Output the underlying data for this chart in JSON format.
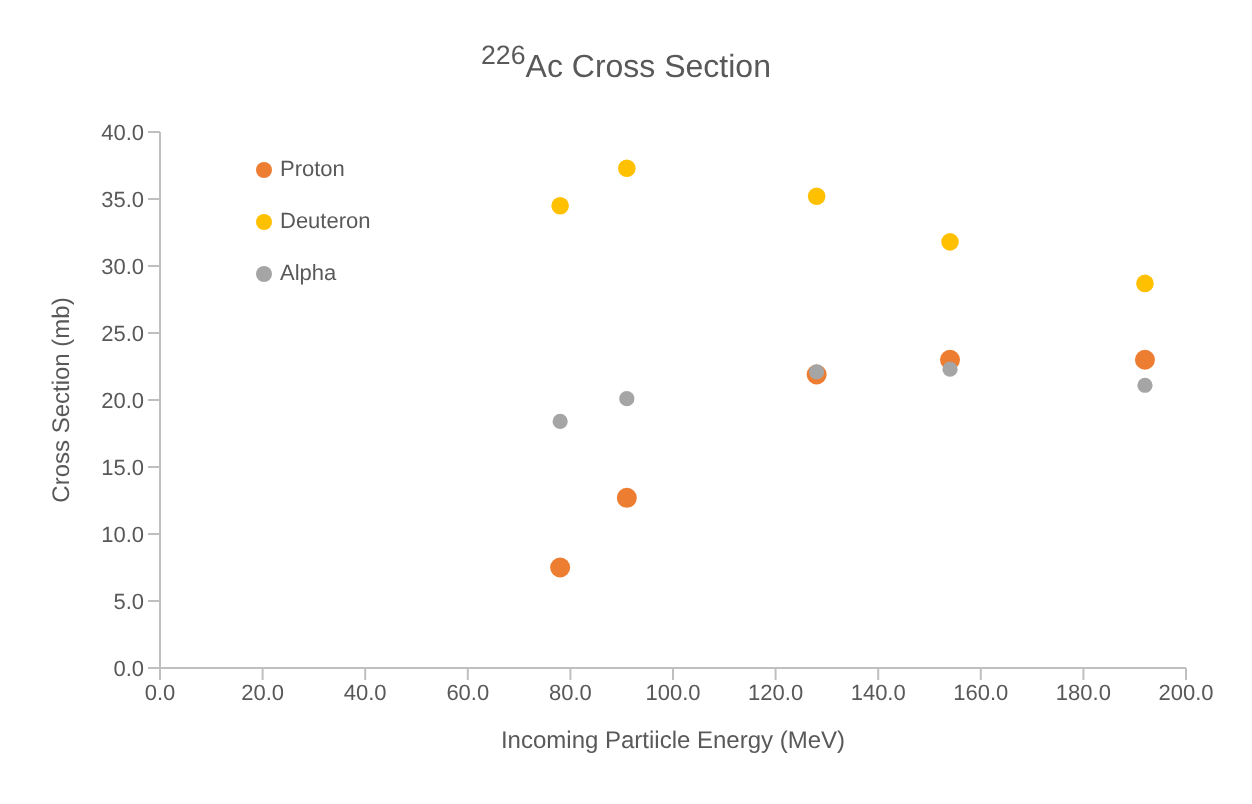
{
  "chart_data": {
    "type": "scatter",
    "title": "$^{226}$Ac Cross Section",
    "xlabel": "Incoming Partiicle Energy (MeV)",
    "ylabel": "Cross Section (mb)",
    "x": [
      78,
      91,
      128,
      154,
      192
    ],
    "series": [
      {
        "name": "Proton",
        "color": "#ed7d31",
        "values": [
          7.5,
          12.7,
          21.9,
          23.0,
          23.0
        ]
      },
      {
        "name": "Deuteron",
        "color": "#ffc000",
        "values": [
          34.5,
          37.3,
          35.2,
          31.8,
          28.7
        ]
      },
      {
        "name": "Alpha",
        "color": "#a5a5a5",
        "values": [
          18.4,
          20.1,
          22.1,
          22.3,
          21.1
        ]
      }
    ],
    "xlim": [
      0,
      200
    ],
    "xticks": [
      {
        "value": 0,
        "label": "0.0"
      },
      {
        "value": 20,
        "label": "20.0"
      },
      {
        "value": 40,
        "label": "40.0"
      },
      {
        "value": 60,
        "label": "60.0"
      },
      {
        "value": 80,
        "label": "80.0"
      },
      {
        "value": 100,
        "label": "100.0"
      },
      {
        "value": 120,
        "label": "120.0"
      },
      {
        "value": 140,
        "label": "140.0"
      },
      {
        "value": 160,
        "label": "160.0"
      },
      {
        "value": 180,
        "label": "180.0"
      },
      {
        "value": 200,
        "label": "200.0"
      }
    ],
    "ylim": [
      0,
      40
    ],
    "yticks": [
      {
        "value": 0,
        "label": "0.0"
      },
      {
        "value": 5,
        "label": "5.0"
      },
      {
        "value": 10,
        "label": "10.0"
      },
      {
        "value": 15,
        "label": "15.0"
      },
      {
        "value": 20,
        "label": "20.0"
      },
      {
        "value": 25,
        "label": "25.0"
      },
      {
        "value": 30,
        "label": "30.0"
      },
      {
        "value": 35,
        "label": "35.0"
      },
      {
        "value": 40,
        "label": "40.0"
      }
    ],
    "grid": false,
    "legend": "top left",
    "marker": "circle"
  }
}
